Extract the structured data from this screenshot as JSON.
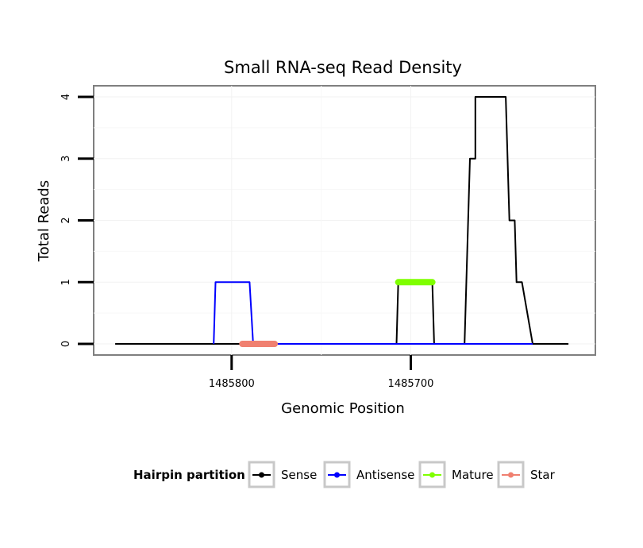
{
  "chart_data": {
    "type": "line",
    "title": "Small RNA-seq Read Density",
    "xlabel": "Genomic Position",
    "ylabel": "Total Reads",
    "x_reversed": true,
    "xlim": [
      1485877,
      1485597
    ],
    "ylim": [
      -0.18,
      4.18
    ],
    "x_ticks": [
      1485800,
      1485700
    ],
    "x_tick_labels": [
      "1485800",
      "1485700"
    ],
    "y_ticks": [
      0,
      1,
      2,
      3,
      4
    ],
    "y_tick_labels": [
      "0",
      "1",
      "2",
      "3",
      "4"
    ],
    "grid": true,
    "legend": {
      "title": "Hairpin partition",
      "position": "bottom",
      "entries": [
        "Sense",
        "Antisense",
        "Mature",
        "Star"
      ]
    },
    "series": [
      {
        "name": "Sense",
        "color": "#000000",
        "stroke_width": 2,
        "x": [
          1485865,
          1485708,
          1485707,
          1485688,
          1485687,
          1485670,
          1485667,
          1485664,
          1485664,
          1485647,
          1485645,
          1485642,
          1485641,
          1485638,
          1485632,
          1485612
        ],
        "y": [
          0,
          0,
          1,
          1,
          0,
          0,
          3,
          3,
          4,
          4,
          2,
          2,
          1,
          1,
          0,
          0
        ]
      },
      {
        "name": "Antisense",
        "color": "#0000ff",
        "stroke_width": 2,
        "x": [
          1485810,
          1485809,
          1485790,
          1485788,
          1485708,
          1485707,
          1485688,
          1485687,
          1485670,
          1485632
        ],
        "y": [
          0,
          1,
          1,
          0,
          0,
          0,
          0,
          0,
          0,
          0
        ]
      },
      {
        "name": "Mature",
        "color": "#7fff00",
        "stroke_width": 8,
        "x": [
          1485707,
          1485688
        ],
        "y": [
          1,
          1
        ]
      },
      {
        "name": "Star",
        "color": "#f08070",
        "stroke_width": 8,
        "x": [
          1485794,
          1485776
        ],
        "y": [
          0,
          0
        ]
      }
    ]
  }
}
